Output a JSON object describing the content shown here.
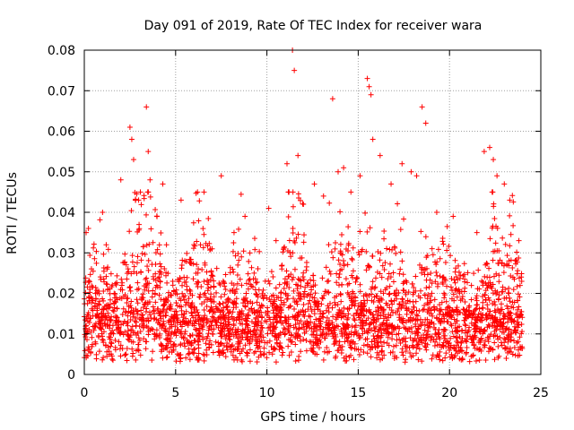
{
  "chart_data": {
    "type": "scatter",
    "title": "Day 091 of 2019, Rate Of TEC Index for receiver wara",
    "xlabel": "GPS time / hours",
    "ylabel": "ROTI / TECUs",
    "xlim": [
      0,
      25
    ],
    "ylim": [
      0,
      0.08
    ],
    "x_ticks": [
      "0",
      "5",
      "10",
      "15",
      "20",
      "25"
    ],
    "y_ticks": [
      "0",
      "0.01",
      "0.02",
      "0.03",
      "0.04",
      "0.05",
      "0.06",
      "0.07",
      "0.08"
    ],
    "grid": true,
    "marker": "+",
    "color": "#ff0000",
    "series": [
      {
        "x": [
          0.1,
          0.3,
          0.6,
          1.0,
          1.2,
          1.8,
          2.0,
          2.5,
          2.6,
          2.7,
          2.8,
          3.0,
          3.4,
          3.5,
          3.6,
          4.3,
          4.5,
          5.3,
          5.5,
          6.2,
          6.5,
          7.0,
          7.5,
          8.2,
          8.8,
          9.3,
          10.1,
          10.5,
          11.1,
          11.4,
          11.5,
          11.7,
          12.0,
          12.6,
          13.1,
          13.6,
          13.9,
          14.2,
          14.6,
          15.1,
          15.5,
          15.6,
          15.7,
          15.8,
          16.2,
          16.8,
          17.4,
          17.9,
          18.2,
          18.5,
          18.7,
          19.3,
          20.2,
          21.5,
          21.9,
          22.2,
          22.4,
          22.6,
          23.0,
          23.3,
          23.8
        ],
        "y": [
          0.035,
          0.021,
          0.008,
          0.04,
          0.032,
          0.014,
          0.048,
          0.061,
          0.058,
          0.053,
          0.043,
          0.037,
          0.066,
          0.055,
          0.048,
          0.047,
          0.032,
          0.043,
          0.028,
          0.045,
          0.036,
          0.031,
          0.049,
          0.035,
          0.039,
          0.025,
          0.041,
          0.033,
          0.052,
          0.08,
          0.075,
          0.054,
          0.042,
          0.047,
          0.044,
          0.068,
          0.05,
          0.051,
          0.045,
          0.049,
          0.073,
          0.071,
          0.069,
          0.058,
          0.054,
          0.047,
          0.052,
          0.05,
          0.049,
          0.066,
          0.062,
          0.04,
          0.039,
          0.035,
          0.055,
          0.056,
          0.053,
          0.049,
          0.047,
          0.043,
          0.033
        ]
      }
    ]
  }
}
